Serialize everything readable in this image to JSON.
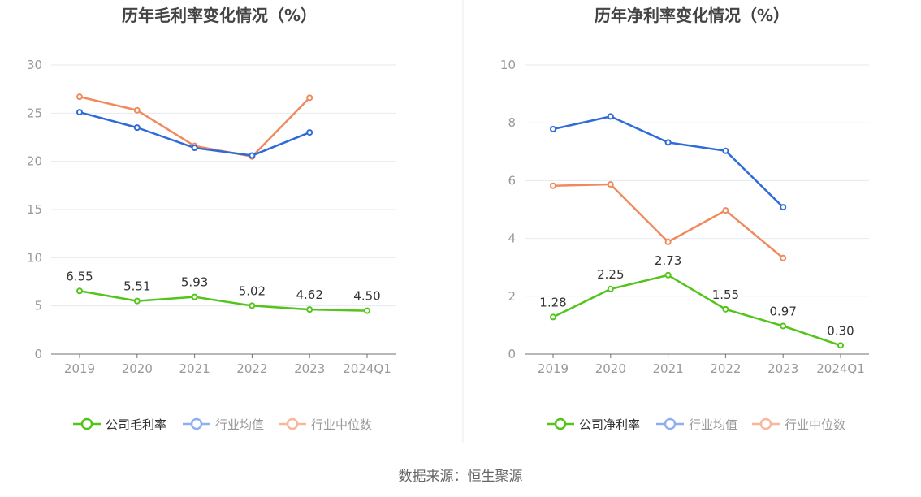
{
  "source": "数据来源：恒生聚源",
  "colors": {
    "company": "#52c41a",
    "avg": "#2f6bd8",
    "median": "#f08a5d",
    "avg_legend": "#8fb0ee",
    "median_legend": "#f6b79a",
    "axis_text": "#999999",
    "grid": "#e6e9f0",
    "title": "#444444"
  },
  "chart_data": [
    {
      "type": "line",
      "title": "历年毛利率变化情况（%）",
      "categories": [
        "2019",
        "2020",
        "2021",
        "2022",
        "2023",
        "2024Q1"
      ],
      "ylim": [
        0,
        30
      ],
      "yticks": [
        "0",
        "5",
        "10",
        "15",
        "20",
        "25",
        "30"
      ],
      "grid": true,
      "legend_position": "bottom",
      "series": [
        {
          "name": "公司毛利率",
          "values": [
            6.55,
            5.51,
            5.93,
            5.02,
            4.62,
            4.5
          ],
          "labels": [
            "6.55",
            "5.51",
            "5.93",
            "5.02",
            "4.62",
            "4.50"
          ]
        },
        {
          "name": "行业均值",
          "values": [
            25.1,
            23.5,
            21.4,
            20.6,
            23.0,
            null
          ]
        },
        {
          "name": "行业中位数",
          "values": [
            26.7,
            25.3,
            21.6,
            20.5,
            26.6,
            null
          ]
        }
      ]
    },
    {
      "type": "line",
      "title": "历年净利率变化情况（%）",
      "categories": [
        "2019",
        "2020",
        "2021",
        "2022",
        "2023",
        "2024Q1"
      ],
      "ylim": [
        0,
        10
      ],
      "yticks": [
        "0",
        "2",
        "4",
        "6",
        "8",
        "10"
      ],
      "grid": true,
      "legend_position": "bottom",
      "series": [
        {
          "name": "公司净利率",
          "values": [
            1.28,
            2.25,
            2.73,
            1.55,
            0.97,
            0.3
          ],
          "labels": [
            "1.28",
            "2.25",
            "2.73",
            "1.55",
            "0.97",
            "0.30"
          ]
        },
        {
          "name": "行业均值",
          "values": [
            7.78,
            8.22,
            7.32,
            7.03,
            5.08,
            null
          ]
        },
        {
          "name": "行业中位数",
          "values": [
            5.82,
            5.87,
            3.88,
            4.97,
            3.32,
            null
          ]
        }
      ]
    }
  ]
}
